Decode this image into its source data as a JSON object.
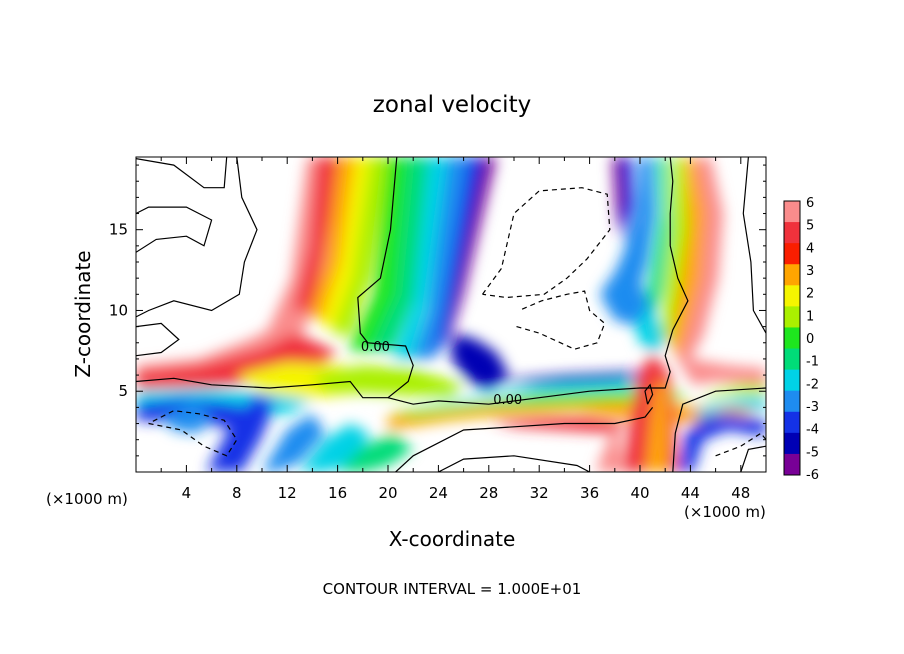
{
  "chart_data": {
    "type": "heatmap",
    "title": "zonal velocity",
    "xlabel": "X-coordinate",
    "ylabel": "Z-coordinate",
    "x_unit_left": "(×1000 m)",
    "x_unit_right": "(×1000 m)",
    "xlim": [
      0,
      50
    ],
    "ylim": [
      0,
      19.5
    ],
    "x_ticks": [
      4,
      8,
      12,
      16,
      20,
      24,
      28,
      32,
      36,
      40,
      44,
      48
    ],
    "y_ticks": [
      5,
      10,
      15
    ],
    "colorbar": {
      "levels": [
        6,
        5,
        4,
        3,
        2,
        1,
        0,
        -1,
        -2,
        -3,
        -4,
        -5,
        -6
      ],
      "colors": [
        "#fa8c8c",
        "#f0323c",
        "#fa1e00",
        "#ffa500",
        "#f5f500",
        "#aaf000",
        "#1ee61e",
        "#00dc78",
        "#00d2e6",
        "#1e8cf0",
        "#1432e6",
        "#0000b4",
        "#780096"
      ]
    },
    "contour_labels": [
      {
        "text": "0.00",
        "x": 19.0,
        "z": 7.5
      },
      {
        "text": "0.00",
        "x": 29.5,
        "z": 4.2
      }
    ],
    "footer": "CONTOUR INTERVAL = 1.000E+01",
    "grid": false
  }
}
